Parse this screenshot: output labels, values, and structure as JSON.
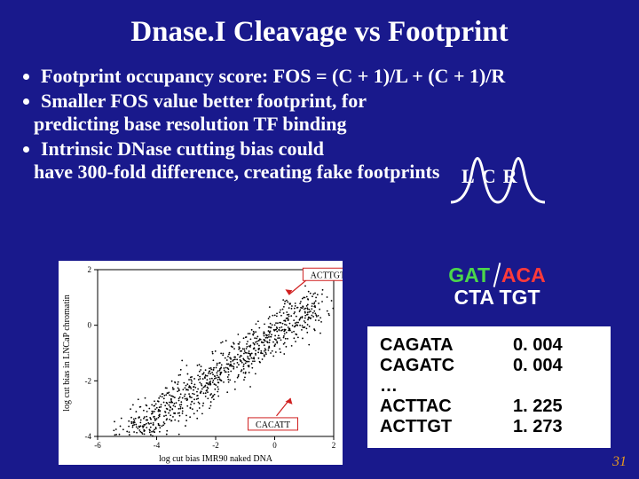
{
  "title": {
    "text": "Dnase.I Cleavage vs Footprint",
    "fontsize": 33
  },
  "bullets": {
    "fontsize": 22,
    "items": [
      {
        "text": "Footprint occupancy score: FOS = (C + 1)/L + (C + 1)/R"
      },
      {
        "text": "Smaller FOS value better footprint, for",
        "cont": "predicting base resolution TF binding"
      },
      {
        "text": "Intrinsic DNase cutting bias could",
        "cont": "have 300-fold difference, creating fake footprints"
      }
    ]
  },
  "peaks": {
    "labels": {
      "l": "L",
      "c": "C",
      "r": "R",
      "fontsize": 22
    },
    "stroke": "#ffffff",
    "stroke_width": 3
  },
  "scatter": {
    "xlabel": "log cut bias IMR90 naked DNA",
    "ylabel": "log cut bias in LNCaP chromatin",
    "xlim": [
      -6,
      2
    ],
    "ylim": [
      -4,
      2
    ],
    "xticks": [
      -6,
      -4,
      -2,
      0,
      2
    ],
    "yticks": [
      -4,
      -2,
      0,
      2
    ],
    "n_points": 900,
    "callout1": {
      "text": "ACTTGT",
      "x": 1.2,
      "y": 1.8
    },
    "callout2": {
      "text": "CACATT",
      "x": 0.0,
      "y": -3.2
    },
    "point_color": "#000000",
    "callout_color": "#d02020",
    "axis_color": "#000000",
    "label_fontsize": 10,
    "tick_fontsize": 9
  },
  "motif": {
    "fontsize": 23,
    "top_left": "GAT",
    "top_right": "ACA",
    "bottom": "CTA TGT",
    "color_left": "#4bd64b",
    "color_right": "#ff3a3a",
    "color_bottom": "#ffffff"
  },
  "table": {
    "fontsize": 20,
    "rows": [
      {
        "seq": "CAGATA",
        "val": "0. 004"
      },
      {
        "seq": "CAGATC",
        "val": "0. 004"
      },
      {
        "seq": "…",
        "val": ""
      },
      {
        "seq": "ACTTAC",
        "val": "1. 225"
      },
      {
        "seq": "ACTTGT",
        "val": "1. 273"
      }
    ]
  },
  "page_number": "31"
}
